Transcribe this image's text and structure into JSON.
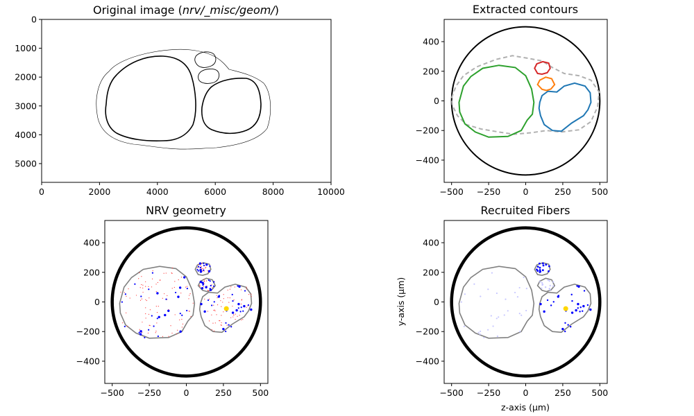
{
  "chart_data": [
    {
      "type": "image",
      "title_prefix": "Original image (",
      "title_italic": "nrv/_misc/geom/",
      "title_suffix": ")",
      "xticks": [
        "0",
        "2000",
        "4000",
        "6000",
        "8000",
        "10000"
      ],
      "yticks": [
        "0",
        "1000",
        "2000",
        "3000",
        "4000",
        "5000"
      ],
      "xlim": [
        0,
        10000
      ],
      "ylim": [
        5650,
        0
      ]
    },
    {
      "type": "line",
      "title": "Extracted contours",
      "xticks": [
        "−500",
        "−250",
        "0",
        "250",
        "500"
      ],
      "yticks": [
        "400",
        "200",
        "0",
        "−200",
        "−400"
      ],
      "xlim": [
        -550,
        550
      ],
      "ylim": [
        -550,
        550
      ],
      "colors": {
        "outer": "#000000",
        "epineurium": "#b0b0b0",
        "fascicle_1": "#2ca02c",
        "fascicle_2": "#1f77b4",
        "fascicle_3": "#ff7f0e",
        "fascicle_4": "#d62728"
      }
    },
    {
      "type": "scatter",
      "title": "NRV geometry",
      "xticks": [
        "−500",
        "−250",
        "0",
        "250",
        "500"
      ],
      "yticks": [
        "400",
        "200",
        "0",
        "−200",
        "−400"
      ],
      "xlim": [
        -550,
        550
      ],
      "ylim": [
        -550,
        550
      ],
      "electrode": {
        "z": 270,
        "y": -45,
        "color": "#ffd700"
      },
      "colors": {
        "myelinated": "#0000ff",
        "unmyelinated": "#ff3333",
        "fascicle": "#808080"
      }
    },
    {
      "type": "scatter",
      "title": "Recruited Fibers",
      "xlabel": "z-axis (µm)",
      "ylabel": "y-axis (µm)",
      "xticks": [
        "−500",
        "−250",
        "0",
        "250",
        "500"
      ],
      "yticks": [
        "400",
        "200",
        "0",
        "−200",
        "−400"
      ],
      "xlim": [
        -550,
        550
      ],
      "ylim": [
        -550,
        550
      ],
      "electrode": {
        "z": 270,
        "y": -45,
        "color": "#ffd700"
      },
      "colors": {
        "recruited": "#0000ff",
        "not_recruited": "#c8c8ff",
        "fascicle": "#808080"
      }
    }
  ]
}
